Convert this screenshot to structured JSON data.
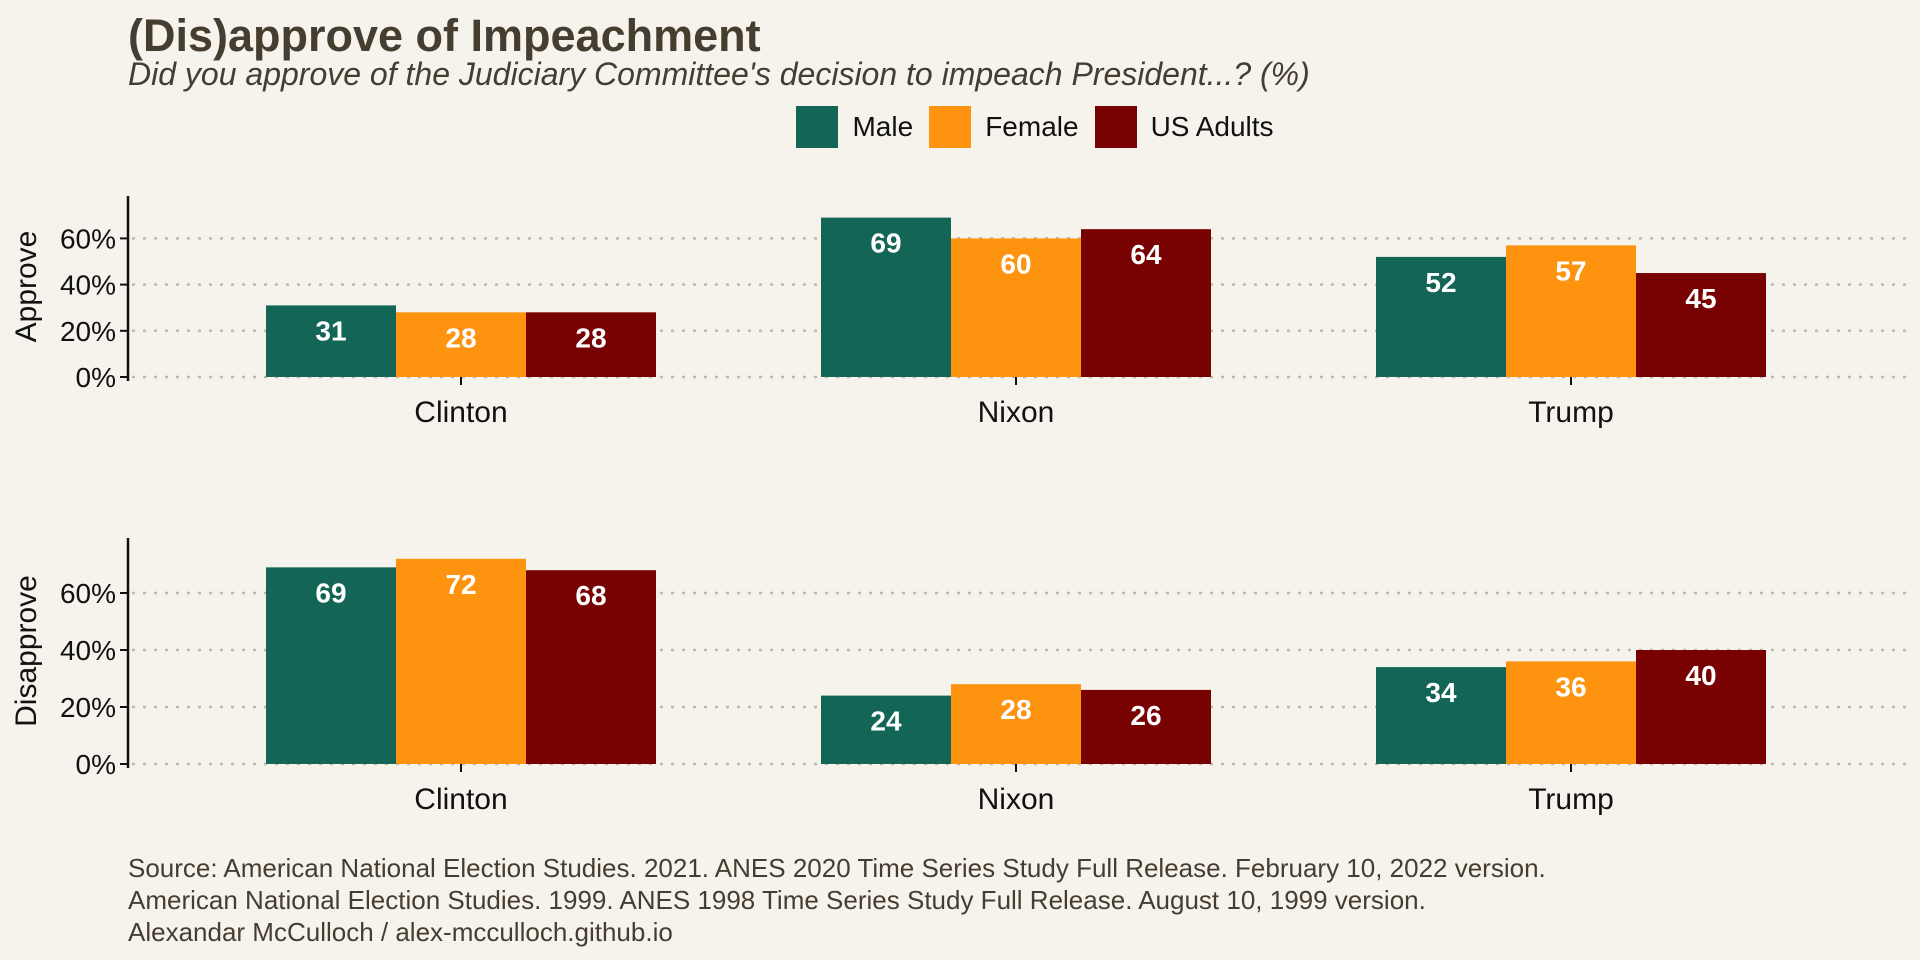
{
  "title": "(Dis)approve of Impeachment",
  "subtitle": "Did you approve of the Judiciary Committee's decision to impeach President...? (%)",
  "colors": {
    "background": "#f6f3ec",
    "male": "#136656",
    "female": "#fd930f",
    "us_adults": "#780102",
    "grid": "#bdb8b0",
    "text": "#463d31"
  },
  "legend": [
    {
      "label": "Male",
      "color": "#136656"
    },
    {
      "label": "Female",
      "color": "#fd930f"
    },
    {
      "label": "US Adults",
      "color": "#780102"
    }
  ],
  "chart_data": [
    {
      "type": "bar",
      "ylabel": "Approve",
      "categories": [
        "Clinton",
        "Nixon",
        "Trump"
      ],
      "yticks": [
        "0%",
        "20%",
        "40%",
        "60%"
      ],
      "ylim": [
        0,
        78
      ],
      "grid": true,
      "legend_position": "top",
      "series": [
        {
          "name": "Male",
          "values": [
            31,
            69,
            52
          ]
        },
        {
          "name": "Female",
          "values": [
            28,
            60,
            57
          ]
        },
        {
          "name": "US Adults",
          "values": [
            28,
            64,
            45
          ]
        }
      ]
    },
    {
      "type": "bar",
      "ylabel": "Disapprove",
      "categories": [
        "Clinton",
        "Nixon",
        "Trump"
      ],
      "yticks": [
        "0%",
        "20%",
        "40%",
        "60%"
      ],
      "ylim": [
        0,
        78
      ],
      "grid": true,
      "legend_position": "top",
      "series": [
        {
          "name": "Male",
          "values": [
            69,
            24,
            34
          ]
        },
        {
          "name": "Female",
          "values": [
            72,
            28,
            36
          ]
        },
        {
          "name": "US Adults",
          "values": [
            68,
            26,
            40
          ]
        }
      ]
    }
  ],
  "source": [
    "Source: American National Election Studies. 2021. ANES 2020 Time Series Study Full Release. February 10, 2022 version.",
    "American National Election Studies. 1999. ANES 1998 Time Series Study Full Release. August 10, 1999 version.",
    "Alexandar McCulloch / alex-mcculloch.github.io"
  ]
}
